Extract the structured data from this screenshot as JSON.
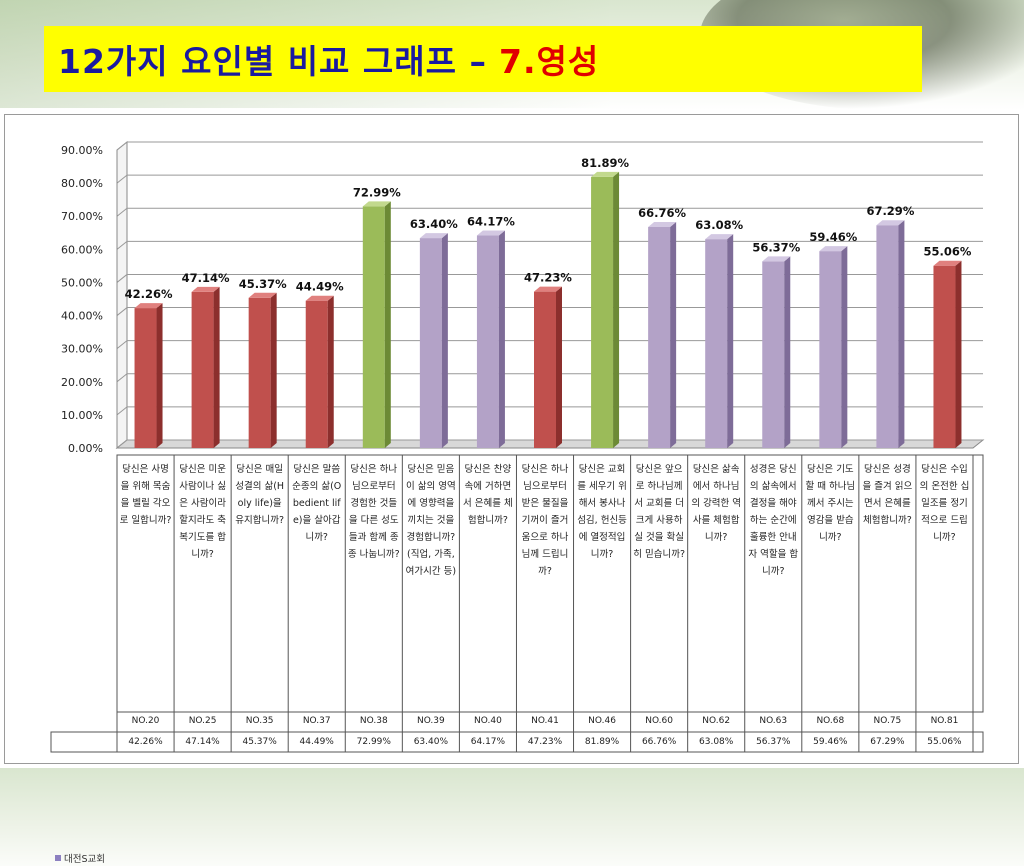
{
  "title": {
    "main": "12가지 요인별 비교 그래프 –",
    "accent": "7.영성"
  },
  "colors": {
    "red": "#c0504d",
    "purple": "#b3a2c7",
    "green": "#9bbb59",
    "title_bg": "#ffff00",
    "title_text": "#1a1aa0",
    "accent_text": "#e00000"
  },
  "legend_label": "대전S교회",
  "chart_data": {
    "type": "bar",
    "ylim": [
      0,
      90
    ],
    "yticks": [
      "0.00%",
      "10.00%",
      "20.00%",
      "30.00%",
      "40.00%",
      "50.00%",
      "60.00%",
      "70.00%",
      "80.00%",
      "90.00%"
    ],
    "series": [
      {
        "name": "대전S교회",
        "values": [
          42.26,
          47.14,
          45.37,
          44.49,
          72.99,
          63.4,
          64.17,
          47.23,
          81.89,
          66.76,
          63.08,
          56.37,
          59.46,
          67.29,
          55.06
        ],
        "value_labels": [
          "42.26%",
          "47.14%",
          "45.37%",
          "44.49%",
          "72.99%",
          "63.40%",
          "64.17%",
          "47.23%",
          "81.89%",
          "66.76%",
          "63.08%",
          "56.37%",
          "59.46%",
          "67.29%",
          "55.06%"
        ],
        "bar_colors": [
          "red",
          "red",
          "red",
          "red",
          "green",
          "purple",
          "purple",
          "red",
          "green",
          "purple",
          "purple",
          "purple",
          "purple",
          "purple",
          "red"
        ]
      }
    ],
    "categories": [
      "당신은 사명을 위해 목숨을 벨릴 각오로 일합니까?",
      "당신은 미운 사람이나 싫은 사람이라 할지라도 축복기도를 합니까?",
      "당신은 매일 성결의 삶(Holy life)을 유지합니까?",
      "당신은 말씀 순종의 삶(Obedient life)을 살아갑니까?",
      "당신은 하나님으로부터 경험한 것들을 다른 성도들과 함께 종종 나눕니까?",
      "당신은 믿음이 삶의 영역에 영향력을 끼치는 것을 경험합니까?(직업, 가족, 여가시간 등)",
      "당신은 찬양속에 거하면서 은혜를 체험합니까?",
      "당신은 하나님으로부터 받은 물질을 기꺼이 즐거움으로 하나님께 드립니까?",
      "당신은 교회를 세우기 위해서 봉사나 섬김, 헌신등에 열정적입니까?",
      "당신은 앞으로 하나님께서 교회를 더 크게 사용하실 것을 확실히 믿습니까?",
      "당신은 삶속에서 하나님의 강력한 역사를 체험합니까?",
      "성경은 당신의 삶속에서 결정을 해야 하는 순간에 훌륭한 안내자 역할을 합니까?",
      "당신은 기도할 때 하나님께서 주시는 영감을 받습니까?",
      "당신은 성경을 즐겨 읽으면서 은혜를 체험합니까?",
      "당신은 수입의 온전한 십일조를 정기적으로 드립니까?"
    ],
    "numbers": [
      "NO.20",
      "NO.25",
      "NO.35",
      "NO.37",
      "NO.38",
      "NO.39",
      "NO.40",
      "NO.41",
      "NO.46",
      "NO.60",
      "NO.62",
      "NO.63",
      "NO.68",
      "NO.75",
      "NO.81"
    ],
    "grid": true,
    "legend_position": "bottom-left"
  }
}
